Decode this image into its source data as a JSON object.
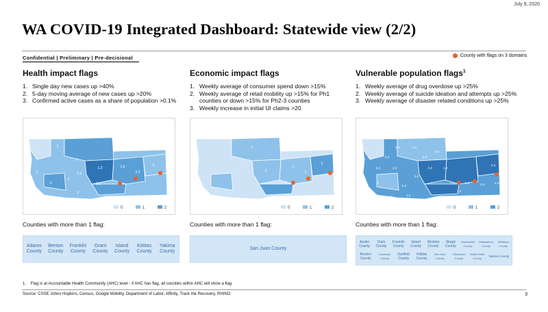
{
  "header": {
    "date": "July 9, 2020",
    "title": "WA COVID-19 Integrated Dashboard: Statewide view (2/2)",
    "confidential": "Confidential | Preliminary | Pre-decisional",
    "legend_label": "County with flags on 3 domains"
  },
  "colors": {
    "flag_dot": "#e8622a",
    "level0": "#cfe3f6",
    "level1": "#8ec2ea",
    "level2": "#5aa0d6",
    "level3": "#2f74b5"
  },
  "columns": [
    {
      "title": "Health impact flags",
      "items": [
        {
          "n": "1.",
          "text": "Single day new cases up >40%"
        },
        {
          "n": "2.",
          "text": "5-day moving average of new cases up >20%"
        },
        {
          "n": "3.",
          "text": "Confirmed active cases as a share of population >0.1%"
        }
      ],
      "legend": [
        "0",
        "1",
        "2"
      ],
      "counties_label": "Counties with more than 1 flag:",
      "counties": [
        "Adams County",
        "Benton County",
        "Franklin County",
        "Grant County",
        "Island County",
        "Kittitas County",
        "Yakima County"
      ]
    },
    {
      "title": "Economic impact flags",
      "items": [
        {
          "n": "1.",
          "text": "Weekly average of consumer spend down >15%"
        },
        {
          "n": "2.",
          "text": "Weekly average of retail mobility up >15% for Ph1 counties or down >15% for Ph2-3 counties"
        },
        {
          "n": "3.",
          "text": "Weekly increase in initial UI claims >20"
        }
      ],
      "legend": [
        "0",
        "1",
        "2"
      ],
      "counties_label": "Counties with more than 1 flag:",
      "counties": [
        "San Juan County"
      ]
    },
    {
      "title": "Vulnerable population flags",
      "title_sup": "1",
      "items": [
        {
          "n": "1.",
          "text": "Weekly average of drug overdose up >25%"
        },
        {
          "n": "2.",
          "text": "Weekly average of suicide ideation and attempts up >25%"
        },
        {
          "n": "3.",
          "text": "Weekly average of disaster related conditions up >25%"
        }
      ],
      "legend": [
        "0",
        "1",
        "2"
      ],
      "counties_label": "Counties with more than 1 flag:",
      "counties_row1": [
        "Asotin County",
        "Clark County",
        "Franklin County",
        "Island County",
        "Klickitat County",
        "Skagit County",
        "Snohomish County",
        "Wahkiakum County",
        "Whitman County"
      ],
      "counties_row2": [
        "Benton County",
        "Columbia County",
        "Garfield County",
        "Kittitas County",
        "San Juan County",
        "Skamania County",
        "Walla Walla County",
        "Yakima County"
      ]
    }
  ],
  "map_labels": {
    "health": [
      "1",
      "1",
      "1",
      "1,3",
      "1,3",
      "1,3",
      "2,3",
      "1,3",
      "1",
      "2",
      "3",
      "2"
    ],
    "economic": [
      "1",
      "1",
      "2",
      "2",
      "1",
      "2"
    ],
    "vulnerable": [
      "2,3",
      "2,3",
      "2,3",
      "2,3",
      "2,3",
      "2,3",
      "2,3",
      "1,3",
      "2,3",
      "2,3",
      "2,3",
      "2,3",
      "2,3",
      "1,3",
      "2,3",
      "1,3",
      "2,3",
      "1",
      "2,3",
      "1,3",
      "1,3",
      "1,3"
    ]
  },
  "footer": {
    "footnote_num": "1.",
    "footnote": "Flag is at Accountable Health Community (AHC) level - if AHC has flag, all counties within AHC will show a flag",
    "source": "Source: CSSE Johns Hopkins, Census, Google Mobility, Department of Labor, Affinity, Track the Recovery, RHINO",
    "page": "3"
  }
}
